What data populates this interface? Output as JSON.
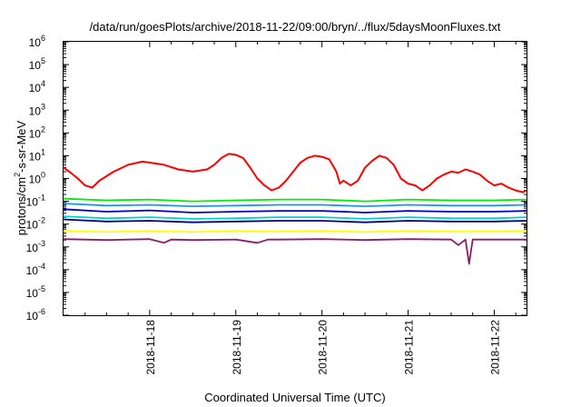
{
  "chart_data": {
    "type": "line",
    "title": "/data/run/goesPlots/archive/2018-11-22/09:00/bryn/../flux/5daysMoonFluxes.txt",
    "xlabel": "Coordinated Universal Time (UTC)",
    "ylabel": "protons/cm2-s-sr-MeV",
    "ylabel_parts": [
      "protons/cm",
      "2",
      "-s-sr-MeV"
    ],
    "yscale": "log",
    "ylim": [
      1e-06,
      1000000.0
    ],
    "xlim": [
      "2018-11-17 00:00",
      "2018-11-22 09:00"
    ],
    "y_ticks": [
      {
        "value": 1e-06,
        "base": "10",
        "exp": "-6"
      },
      {
        "value": 1e-05,
        "base": "10",
        "exp": "-5"
      },
      {
        "value": 0.0001,
        "base": "10",
        "exp": "-4"
      },
      {
        "value": 0.001,
        "base": "10",
        "exp": "-3"
      },
      {
        "value": 0.01,
        "base": "10",
        "exp": "-2"
      },
      {
        "value": 0.1,
        "base": "10",
        "exp": "-1"
      },
      {
        "value": 1,
        "base": "10",
        "exp": "0"
      },
      {
        "value": 10,
        "base": "10",
        "exp": "1"
      },
      {
        "value": 100,
        "base": "10",
        "exp": "2"
      },
      {
        "value": 1000,
        "base": "10",
        "exp": "3"
      },
      {
        "value": 10000,
        "base": "10",
        "exp": "4"
      },
      {
        "value": 100000,
        "base": "10",
        "exp": "5"
      },
      {
        "value": 1000000,
        "base": "10",
        "exp": "6"
      }
    ],
    "x_ticks": [
      "2018-11-18",
      "2018-11-19",
      "2018-11-20",
      "2018-11-21",
      "2018-11-22"
    ],
    "grid": false,
    "legend": "none",
    "series": [
      {
        "color": "#ff0000",
        "x": [
          "2018-11-17 00:00",
          "2018-11-17 02:00",
          "2018-11-17 04:00",
          "2018-11-17 06:00",
          "2018-11-17 08:00",
          "2018-11-17 10:00",
          "2018-11-17 14:00",
          "2018-11-17 18:00",
          "2018-11-17 22:00",
          "2018-11-18 00:00",
          "2018-11-18 04:00",
          "2018-11-18 08:00",
          "2018-11-18 12:00",
          "2018-11-18 16:00",
          "2018-11-18 18:00",
          "2018-11-18 20:00",
          "2018-11-18 22:00",
          "2018-11-19 00:00",
          "2018-11-19 02:00",
          "2018-11-19 04:00",
          "2018-11-19 06:00",
          "2018-11-19 08:00",
          "2018-11-19 10:00",
          "2018-11-19 12:00",
          "2018-11-19 14:00",
          "2018-11-19 16:00",
          "2018-11-19 18:00",
          "2018-11-19 20:00",
          "2018-11-19 22:00",
          "2018-11-20 00:00",
          "2018-11-20 02:00",
          "2018-11-20 04:00",
          "2018-11-20 05:00",
          "2018-11-20 06:00",
          "2018-11-20 08:00",
          "2018-11-20 10:00",
          "2018-11-20 12:00",
          "2018-11-20 14:00",
          "2018-11-20 16:00",
          "2018-11-20 18:00",
          "2018-11-20 20:00",
          "2018-11-20 22:00",
          "2018-11-21 00:00",
          "2018-11-21 02:00",
          "2018-11-21 04:00",
          "2018-11-21 06:00",
          "2018-11-21 08:00",
          "2018-11-21 10:00",
          "2018-11-21 12:00",
          "2018-11-21 14:00",
          "2018-11-21 16:00",
          "2018-11-21 18:00",
          "2018-11-21 20:00",
          "2018-11-21 22:00",
          "2018-11-22 00:00",
          "2018-11-22 02:00",
          "2018-11-22 04:00",
          "2018-11-22 06:00",
          "2018-11-22 08:00",
          "2018-11-22 09:00"
        ],
        "y": [
          3,
          1.8,
          1,
          0.5,
          0.4,
          0.8,
          2,
          4,
          5.5,
          5,
          4,
          2.5,
          2,
          2.5,
          4,
          8,
          12,
          11,
          8,
          3,
          1,
          0.5,
          0.3,
          0.4,
          0.8,
          2,
          5,
          8,
          10,
          9,
          7,
          2,
          0.6,
          0.8,
          0.5,
          0.8,
          3,
          6,
          10,
          8,
          4,
          1,
          0.6,
          0.5,
          0.3,
          0.5,
          1,
          1.5,
          2,
          1.8,
          2.5,
          2,
          1.5,
          0.8,
          0.5,
          0.6,
          0.4,
          0.3,
          0.25,
          0.3
        ]
      },
      {
        "color": "#00ee00",
        "x": [
          "2018-11-17 00:00",
          "2018-11-17 12:00",
          "2018-11-18 00:00",
          "2018-11-18 12:00",
          "2018-11-19 00:00",
          "2018-11-19 12:00",
          "2018-11-20 00:00",
          "2018-11-20 12:00",
          "2018-11-21 00:00",
          "2018-11-21 12:00",
          "2018-11-22 00:00",
          "2018-11-22 09:00"
        ],
        "y": [
          0.13,
          0.11,
          0.12,
          0.1,
          0.11,
          0.12,
          0.12,
          0.1,
          0.12,
          0.11,
          0.11,
          0.12
        ]
      },
      {
        "color": "#1e90ff",
        "x": [
          "2018-11-17 00:00",
          "2018-11-17 12:00",
          "2018-11-18 00:00",
          "2018-11-18 12:00",
          "2018-11-19 00:00",
          "2018-11-19 12:00",
          "2018-11-20 00:00",
          "2018-11-20 12:00",
          "2018-11-21 00:00",
          "2018-11-21 12:00",
          "2018-11-22 00:00",
          "2018-11-22 09:00"
        ],
        "y": [
          0.08,
          0.065,
          0.07,
          0.06,
          0.065,
          0.07,
          0.07,
          0.06,
          0.07,
          0.065,
          0.065,
          0.07
        ]
      },
      {
        "color": "#0000cd",
        "x": [
          "2018-11-17 00:00",
          "2018-11-17 12:00",
          "2018-11-18 00:00",
          "2018-11-18 12:00",
          "2018-11-19 00:00",
          "2018-11-19 12:00",
          "2018-11-20 00:00",
          "2018-11-20 12:00",
          "2018-11-21 00:00",
          "2018-11-21 12:00",
          "2018-11-22 00:00",
          "2018-11-22 09:00"
        ],
        "y": [
          0.045,
          0.035,
          0.04,
          0.032,
          0.035,
          0.038,
          0.038,
          0.032,
          0.038,
          0.035,
          0.035,
          0.038
        ]
      },
      {
        "color": "#00ced1",
        "x": [
          "2018-11-17 00:00",
          "2018-11-17 12:00",
          "2018-11-18 00:00",
          "2018-11-18 12:00",
          "2018-11-19 00:00",
          "2018-11-19 12:00",
          "2018-11-20 00:00",
          "2018-11-20 12:00",
          "2018-11-21 00:00",
          "2018-11-21 12:00",
          "2018-11-22 00:00",
          "2018-11-22 09:00"
        ],
        "y": [
          0.022,
          0.018,
          0.02,
          0.017,
          0.018,
          0.02,
          0.02,
          0.017,
          0.02,
          0.018,
          0.018,
          0.02
        ]
      },
      {
        "color": "#00008b",
        "x": [
          "2018-11-17 00:00",
          "2018-11-17 12:00",
          "2018-11-18 00:00",
          "2018-11-18 12:00",
          "2018-11-19 00:00",
          "2018-11-19 12:00",
          "2018-11-20 00:00",
          "2018-11-20 12:00",
          "2018-11-21 00:00",
          "2018-11-21 12:00",
          "2018-11-22 00:00",
          "2018-11-22 09:00"
        ],
        "y": [
          0.016,
          0.013,
          0.014,
          0.012,
          0.013,
          0.014,
          0.014,
          0.012,
          0.014,
          0.013,
          0.013,
          0.014
        ]
      },
      {
        "color": "#ffff00",
        "x": [
          "2018-11-17 00:00",
          "2018-11-17 12:00",
          "2018-11-18 00:00",
          "2018-11-18 12:00",
          "2018-11-19 00:00",
          "2018-11-19 12:00",
          "2018-11-20 00:00",
          "2018-11-20 12:00",
          "2018-11-21 00:00",
          "2018-11-21 12:00",
          "2018-11-22 00:00",
          "2018-11-22 09:00"
        ],
        "y": [
          0.005,
          0.0045,
          0.005,
          0.0045,
          0.005,
          0.0048,
          0.005,
          0.0045,
          0.005,
          0.0048,
          0.0048,
          0.005
        ]
      },
      {
        "color": "#8b1a6b",
        "x": [
          "2018-11-17 00:00",
          "2018-11-17 12:00",
          "2018-11-18 00:00",
          "2018-11-18 04:00",
          "2018-11-18 06:00",
          "2018-11-18 12:00",
          "2018-11-19 00:00",
          "2018-11-19 06:00",
          "2018-11-19 09:00",
          "2018-11-19 12:00",
          "2018-11-20 00:00",
          "2018-11-20 12:00",
          "2018-11-21 00:00",
          "2018-11-21 12:00",
          "2018-11-21 14:00",
          "2018-11-21 16:00",
          "2018-11-21 17:00",
          "2018-11-21 18:00",
          "2018-11-22 00:00",
          "2018-11-22 09:00"
        ],
        "y": [
          0.0022,
          0.002,
          0.0022,
          0.0015,
          0.0021,
          0.002,
          0.0021,
          0.0015,
          0.0021,
          0.0021,
          0.0022,
          0.002,
          0.0022,
          0.0021,
          0.0012,
          0.0021,
          0.00018,
          0.0021,
          0.0021,
          0.0021
        ]
      }
    ]
  }
}
